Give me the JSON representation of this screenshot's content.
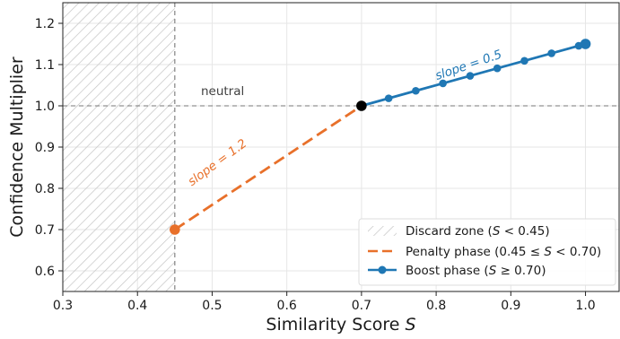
{
  "chart_data": {
    "type": "line",
    "title": "",
    "xlabel": "Similarity Score S",
    "ylabel": "Confidence Multiplier",
    "xlim": [
      0.3,
      1.045
    ],
    "ylim": [
      0.55,
      1.25
    ],
    "x_ticks": [
      0.3,
      0.4,
      0.5,
      0.6,
      0.7,
      0.8,
      0.9,
      1.0
    ],
    "y_ticks": [
      0.6,
      0.7,
      0.8,
      0.9,
      1.0,
      1.1,
      1.2
    ],
    "grid": true,
    "legend_position": "bottom-right",
    "reference_lines": [
      {
        "orientation": "horizontal",
        "value": 1.0,
        "style": "dashed",
        "label": "neutral"
      },
      {
        "orientation": "vertical",
        "value": 0.45,
        "style": "dashed"
      }
    ],
    "shaded_regions": [
      {
        "name": "Discard zone (S < 0.45)",
        "x_range": [
          0.3,
          0.45
        ],
        "pattern": "hatch"
      }
    ],
    "series": [
      {
        "name": "Penalty phase (0.45 ≤ S < 0.70)",
        "style": "dashed",
        "color": "#e8702a",
        "x": [
          0.45,
          0.7
        ],
        "y": [
          0.7,
          1.0
        ]
      },
      {
        "name": "Boost phase (S ≥ 0.70)",
        "style": "solid-with-markers",
        "color": "#1f77b4",
        "x": [
          0.7,
          0.7364,
          0.7727,
          0.8091,
          0.8455,
          0.8818,
          0.9182,
          0.9545,
          0.9909,
          1.0
        ],
        "y": [
          1.0,
          1.0182,
          1.0364,
          1.0545,
          1.0727,
          1.0909,
          1.1091,
          1.1273,
          1.1455,
          1.15
        ]
      }
    ],
    "key_points": [
      {
        "x": 0.45,
        "y": 0.7,
        "color": "#e8702a"
      },
      {
        "x": 0.7,
        "y": 1.0,
        "color": "#000000"
      },
      {
        "x": 1.0,
        "y": 1.15,
        "color": "#1f77b4"
      }
    ],
    "annotations": [
      {
        "text": "slope = 1.2",
        "x": 0.51,
        "y": 0.855,
        "color": "#e8702a"
      },
      {
        "text": "slope = 0.5",
        "x": 0.845,
        "y": 1.09,
        "color": "#1f77b4"
      },
      {
        "text": "neutral",
        "x": 0.485,
        "y": 1.02,
        "color": "#404040"
      }
    ]
  },
  "legend": {
    "discard_prefix": "Discard zone (",
    "discard_var": "S",
    "discard_suffix": " < 0.45)",
    "penalty_prefix": "Penalty phase (0.45 ≤ ",
    "penalty_var": "S",
    "penalty_suffix": " < 0.70)",
    "boost_prefix": "Boost phase (",
    "boost_var": "S",
    "boost_suffix": " ≥ 0.70)"
  },
  "axis_titles": {
    "x_prefix": "Similarity Score ",
    "x_var": "S",
    "y": "Confidence Multiplier"
  }
}
